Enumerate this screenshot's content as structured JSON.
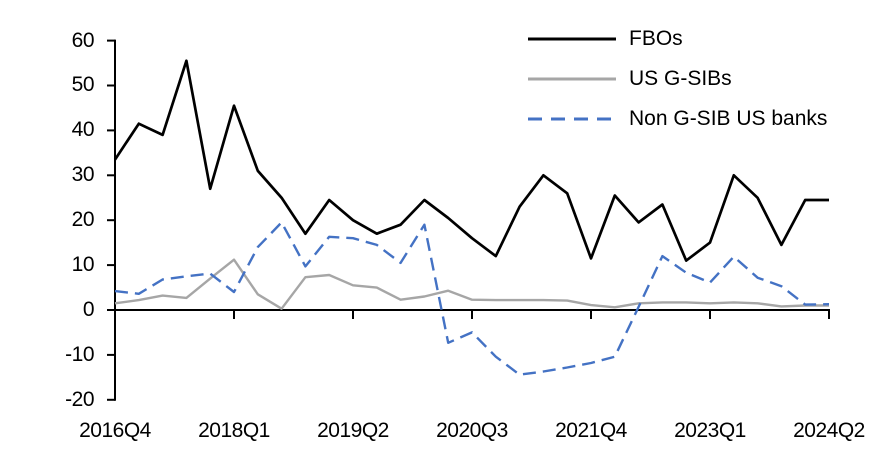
{
  "chart_data": {
    "type": "line",
    "title": "",
    "x_start": "2016Q4",
    "x_end": "2024Q2",
    "x_frequency": "quarterly",
    "n_points": 31,
    "xtick_labels": [
      "2016Q4",
      "2018Q1",
      "2019Q2",
      "2020Q3",
      "2021Q4",
      "2023Q1",
      "2024Q2"
    ],
    "ytick_labels": [
      "60",
      "50",
      "40",
      "30",
      "20",
      "10",
      "0",
      "-10",
      "-20"
    ],
    "ylim": [
      -20,
      60
    ],
    "grid": false,
    "legend_position": "top-right",
    "axis_color": "#000000",
    "series": [
      {
        "name": "FBOs",
        "color": "#000000",
        "style": "solid",
        "values": [
          33.5,
          41.5,
          39,
          55.5,
          27,
          45.5,
          31,
          25,
          17,
          24.5,
          20,
          17,
          19,
          24.5,
          20.5,
          16,
          12,
          23,
          30,
          26,
          11.5,
          25.5,
          19.5,
          23.5,
          11,
          15,
          30,
          25,
          14.5,
          24.5,
          24.5
        ]
      },
      {
        "name": "US G-SIBs",
        "color": "#A6A6A6",
        "style": "solid",
        "values": [
          1.5,
          2.2,
          3.2,
          2.7,
          7,
          11.2,
          3.5,
          0.3,
          7.3,
          7.8,
          5.5,
          5,
          2.3,
          3,
          4.3,
          2.3,
          2.2,
          2.2,
          2.2,
          2.1,
          1.1,
          0.6,
          1.5,
          1.7,
          1.7,
          1.5,
          1.7,
          1.5,
          0.8,
          1,
          1
        ]
      },
      {
        "name": "Non G-SIB US banks",
        "color": "#4472C4",
        "style": "dashed",
        "values": [
          4.2,
          3.6,
          6.8,
          7.5,
          8.1,
          4,
          14,
          19.5,
          9.7,
          16.3,
          16,
          14.5,
          10.5,
          19,
          -7.3,
          -5,
          -10.4,
          -14.4,
          -13.7,
          -12.8,
          -11.8,
          -10.4,
          0.7,
          12,
          8.3,
          6.1,
          11.9,
          7.2,
          5.3,
          1.2,
          1.3
        ]
      }
    ]
  }
}
